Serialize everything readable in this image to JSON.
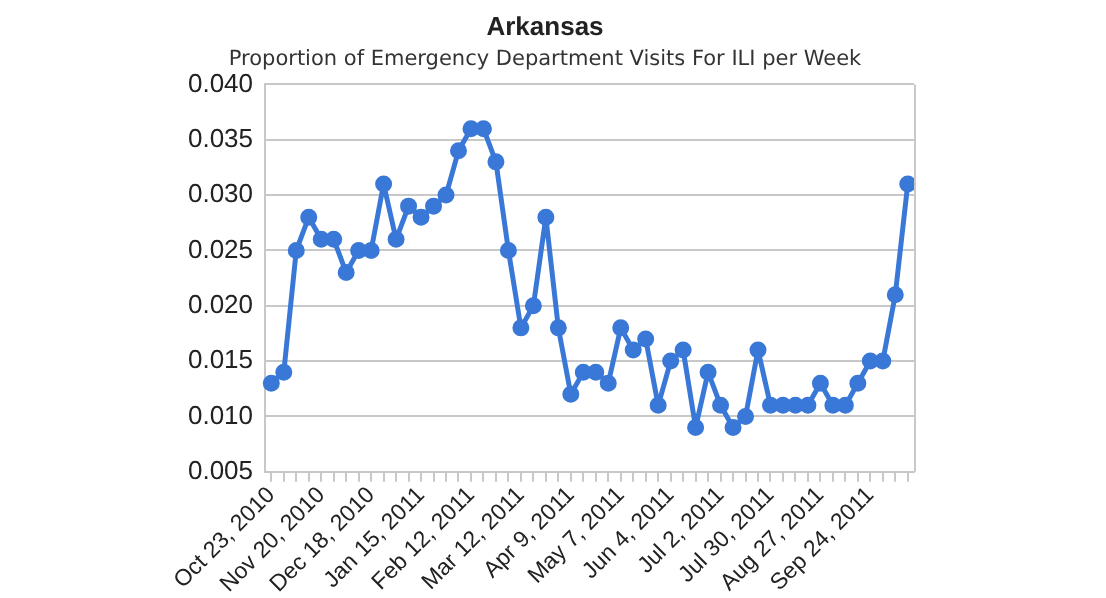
{
  "chart_data": {
    "type": "line",
    "title": "Arkansas",
    "subtitle": "Proportion of Emergency Department Visits For ILI per Week",
    "categories": [
      "Oct 23, 2010",
      null,
      null,
      null,
      "Nov 20, 2010",
      null,
      null,
      null,
      "Dec 18, 2010",
      null,
      null,
      null,
      "Jan 15, 2011",
      null,
      null,
      null,
      "Feb 12, 2011",
      null,
      null,
      null,
      "Mar 12, 2011",
      null,
      null,
      null,
      "Apr 9, 2011",
      null,
      null,
      null,
      "May 7, 2011",
      null,
      null,
      null,
      "Jun 4, 2011",
      null,
      null,
      null,
      "Jul 2, 2011",
      null,
      null,
      null,
      "Jul 30, 2011",
      null,
      null,
      null,
      "Aug 27, 2011",
      null,
      null,
      null,
      "Sep 24, 2011",
      null,
      null,
      null
    ],
    "series": [
      {
        "color": "#3a78d8",
        "values": [
          0.013,
          0.014,
          0.025,
          0.028,
          0.026,
          0.026,
          0.023,
          0.025,
          0.025,
          0.031,
          0.026,
          0.029,
          0.028,
          0.029,
          0.03,
          0.034,
          0.036,
          0.036,
          0.033,
          0.025,
          0.018,
          0.02,
          0.028,
          0.018,
          0.012,
          0.014,
          0.014,
          0.013,
          0.018,
          0.016,
          0.017,
          0.011,
          0.015,
          0.016,
          0.009,
          0.014,
          0.011,
          0.009,
          0.01,
          0.016,
          0.011,
          0.011,
          0.011,
          0.011,
          0.013,
          0.011,
          0.011,
          0.013,
          0.015,
          0.015,
          0.021,
          0.031
        ]
      }
    ],
    "ylim": [
      0.005,
      0.04
    ],
    "yticks": [
      {
        "value": 0.005,
        "label": "0.005"
      },
      {
        "value": 0.01,
        "label": "0.010"
      },
      {
        "value": 0.015,
        "label": "0.015"
      },
      {
        "value": 0.02,
        "label": "0.020"
      },
      {
        "value": 0.025,
        "label": "0.025"
      },
      {
        "value": 0.03,
        "label": "0.030"
      },
      {
        "value": 0.035,
        "label": "0.035"
      },
      {
        "value": 0.04,
        "label": "0.040"
      }
    ],
    "grid": "y",
    "legend": false,
    "marker": "circle",
    "line_style": "solid"
  }
}
